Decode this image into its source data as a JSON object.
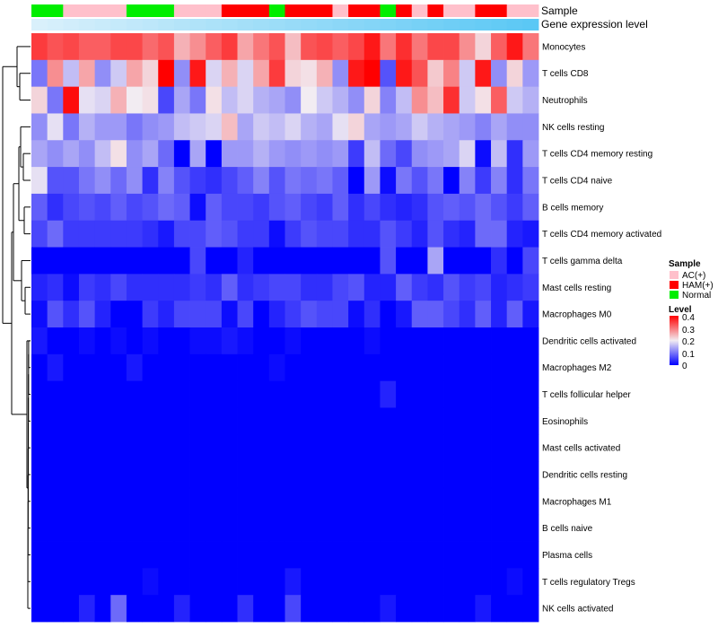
{
  "chart_data": {
    "type": "heatmap",
    "title": "",
    "columns": 32,
    "annotation_tracks": [
      "Sample",
      "Gene expression level"
    ],
    "sample_groups": [
      "Normal",
      "Normal",
      "AC(+)",
      "AC(+)",
      "AC(+)",
      "AC(+)",
      "Normal",
      "Normal",
      "Normal",
      "AC(+)",
      "AC(+)",
      "AC(+)",
      "HAM(+)",
      "HAM(+)",
      "HAM(+)",
      "Normal",
      "HAM(+)",
      "HAM(+)",
      "HAM(+)",
      "AC(+)",
      "HAM(+)",
      "HAM(+)",
      "Normal",
      "HAM(+)",
      "AC(+)",
      "HAM(+)",
      "AC(+)",
      "AC(+)",
      "HAM(+)",
      "HAM(+)",
      "AC(+)",
      "AC(+)"
    ],
    "rows": [
      {
        "label": "Monocytes",
        "values": [
          0.35,
          0.33,
          0.34,
          0.32,
          0.32,
          0.34,
          0.34,
          0.31,
          0.33,
          0.25,
          0.28,
          0.32,
          0.35,
          0.26,
          0.3,
          0.33,
          0.24,
          0.33,
          0.34,
          0.32,
          0.34,
          0.38,
          0.3,
          0.36,
          0.3,
          0.34,
          0.34,
          0.28,
          0.22,
          0.32,
          0.38,
          0.3
        ]
      },
      {
        "label": "T cells CD8",
        "values": [
          0.1,
          0.28,
          0.16,
          0.26,
          0.12,
          0.17,
          0.26,
          0.22,
          0.4,
          0.12,
          0.38,
          0.18,
          0.25,
          0.18,
          0.26,
          0.35,
          0.22,
          0.21,
          0.25,
          0.12,
          0.38,
          0.4,
          0.07,
          0.38,
          0.33,
          0.23,
          0.29,
          0.17,
          0.38,
          0.12,
          0.22,
          0.13
        ]
      },
      {
        "label": "Neutrophils",
        "values": [
          0.22,
          0.1,
          0.39,
          0.19,
          0.18,
          0.25,
          0.2,
          0.21,
          0.06,
          0.14,
          0.1,
          0.21,
          0.16,
          0.18,
          0.15,
          0.14,
          0.12,
          0.2,
          0.17,
          0.15,
          0.12,
          0.22,
          0.11,
          0.16,
          0.28,
          0.24,
          0.36,
          0.17,
          0.21,
          0.32,
          0.17,
          0.15
        ]
      },
      {
        "label": "NK cells resting",
        "values": [
          0.12,
          0.19,
          0.1,
          0.15,
          0.13,
          0.13,
          0.1,
          0.12,
          0.13,
          0.16,
          0.17,
          0.18,
          0.24,
          0.14,
          0.17,
          0.16,
          0.18,
          0.15,
          0.14,
          0.19,
          0.22,
          0.14,
          0.13,
          0.14,
          0.17,
          0.15,
          0.14,
          0.13,
          0.11,
          0.14,
          0.12,
          0.12
        ]
      },
      {
        "label": "T cells CD4 memory resting",
        "values": [
          0.14,
          0.12,
          0.14,
          0.12,
          0.16,
          0.21,
          0.12,
          0.14,
          0.09,
          0.0,
          0.14,
          0.0,
          0.13,
          0.13,
          0.15,
          0.13,
          0.12,
          0.13,
          0.12,
          0.13,
          0.05,
          0.16,
          0.09,
          0.06,
          0.12,
          0.13,
          0.14,
          0.18,
          0.01,
          0.16,
          0.04,
          0.13
        ]
      },
      {
        "label": "T cells CD4 naive",
        "values": [
          0.19,
          0.07,
          0.07,
          0.1,
          0.12,
          0.09,
          0.12,
          0.04,
          0.11,
          0.07,
          0.05,
          0.04,
          0.06,
          0.08,
          0.11,
          0.07,
          0.1,
          0.09,
          0.1,
          0.08,
          0.0,
          0.13,
          0.01,
          0.1,
          0.07,
          0.1,
          0.0,
          0.11,
          0.05,
          0.11,
          0.04,
          0.1
        ]
      },
      {
        "label": "B cells memory",
        "values": [
          0.08,
          0.04,
          0.06,
          0.07,
          0.06,
          0.08,
          0.06,
          0.07,
          0.09,
          0.08,
          0.01,
          0.08,
          0.06,
          0.06,
          0.05,
          0.07,
          0.08,
          0.06,
          0.05,
          0.08,
          0.04,
          0.06,
          0.04,
          0.03,
          0.04,
          0.07,
          0.08,
          0.07,
          0.09,
          0.07,
          0.05,
          0.08
        ]
      },
      {
        "label": "T cells CD4 memory activated",
        "values": [
          0.06,
          0.09,
          0.05,
          0.05,
          0.05,
          0.05,
          0.05,
          0.04,
          0.02,
          0.06,
          0.06,
          0.08,
          0.07,
          0.05,
          0.05,
          0.01,
          0.05,
          0.07,
          0.06,
          0.06,
          0.04,
          0.04,
          0.07,
          0.05,
          0.03,
          0.07,
          0.04,
          0.03,
          0.09,
          0.09,
          0.03,
          0.02
        ]
      },
      {
        "label": "T cells gamma delta",
        "values": [
          0.0,
          0.0,
          0.0,
          0.0,
          0.0,
          0.0,
          0.0,
          0.0,
          0.0,
          0.0,
          0.06,
          0.0,
          0.0,
          0.03,
          0.0,
          0.0,
          0.0,
          0.0,
          0.0,
          0.0,
          0.0,
          0.0,
          0.07,
          0.0,
          0.0,
          0.14,
          0.0,
          0.0,
          0.0,
          0.04,
          0.0,
          0.06
        ]
      },
      {
        "label": "Mast cells resting",
        "values": [
          0.03,
          0.04,
          0.01,
          0.05,
          0.04,
          0.06,
          0.04,
          0.04,
          0.04,
          0.04,
          0.05,
          0.04,
          0.08,
          0.04,
          0.05,
          0.06,
          0.06,
          0.04,
          0.04,
          0.06,
          0.07,
          0.03,
          0.03,
          0.08,
          0.05,
          0.04,
          0.07,
          0.05,
          0.06,
          0.03,
          0.04,
          0.05
        ]
      },
      {
        "label": "Macrophages M0",
        "values": [
          0.01,
          0.07,
          0.04,
          0.07,
          0.03,
          0.0,
          0.0,
          0.05,
          0.03,
          0.06,
          0.06,
          0.06,
          0.01,
          0.06,
          0.0,
          0.03,
          0.05,
          0.07,
          0.06,
          0.06,
          0.01,
          0.04,
          0.0,
          0.02,
          0.08,
          0.08,
          0.06,
          0.04,
          0.08,
          0.03,
          0.08,
          0.02
        ]
      },
      {
        "label": "Dendritic cells activated",
        "values": [
          0.02,
          0.0,
          0.0,
          0.01,
          0.0,
          0.01,
          0.0,
          0.01,
          0.0,
          0.0,
          0.01,
          0.01,
          0.02,
          0.01,
          0.0,
          0.0,
          0.01,
          0.0,
          0.0,
          0.0,
          0.0,
          0.01,
          0.0,
          0.0,
          0.0,
          0.0,
          0.0,
          0.0,
          0.0,
          0.0,
          0.0,
          0.0
        ]
      },
      {
        "label": "Macrophages M2",
        "values": [
          0.0,
          0.02,
          0.0,
          0.0,
          0.0,
          0.0,
          0.02,
          0.0,
          0.0,
          0.0,
          0.0,
          0.0,
          0.0,
          0.0,
          0.0,
          0.01,
          0.0,
          0.0,
          0.0,
          0.0,
          0.0,
          0.0,
          0.0,
          0.0,
          0.0,
          0.0,
          0.0,
          0.0,
          0.0,
          0.0,
          0.0,
          0.0
        ]
      },
      {
        "label": "T cells follicular helper",
        "values": [
          0.0,
          0.0,
          0.0,
          0.0,
          0.0,
          0.0,
          0.0,
          0.0,
          0.0,
          0.0,
          0.0,
          0.0,
          0.0,
          0.0,
          0.0,
          0.0,
          0.0,
          0.0,
          0.0,
          0.0,
          0.0,
          0.0,
          0.03,
          0.0,
          0.0,
          0.0,
          0.0,
          0.0,
          0.0,
          0.0,
          0.0,
          0.0
        ]
      },
      {
        "label": "Eosinophils",
        "values": [
          0.0,
          0.0,
          0.0,
          0.0,
          0.0,
          0.0,
          0.0,
          0.0,
          0.0,
          0.0,
          0.0,
          0.0,
          0.0,
          0.0,
          0.0,
          0.0,
          0.0,
          0.0,
          0.0,
          0.0,
          0.0,
          0.0,
          0.0,
          0.0,
          0.0,
          0.0,
          0.0,
          0.0,
          0.0,
          0.0,
          0.0,
          0.0
        ]
      },
      {
        "label": "Mast cells activated",
        "values": [
          0.0,
          0.0,
          0.0,
          0.0,
          0.0,
          0.0,
          0.0,
          0.0,
          0.0,
          0.0,
          0.0,
          0.0,
          0.0,
          0.0,
          0.0,
          0.0,
          0.0,
          0.0,
          0.0,
          0.0,
          0.0,
          0.0,
          0.0,
          0.0,
          0.0,
          0.0,
          0.0,
          0.0,
          0.0,
          0.0,
          0.0,
          0.0
        ]
      },
      {
        "label": "Dendritic cells resting",
        "values": [
          0.0,
          0.0,
          0.0,
          0.0,
          0.0,
          0.0,
          0.0,
          0.0,
          0.0,
          0.0,
          0.0,
          0.0,
          0.0,
          0.0,
          0.0,
          0.0,
          0.0,
          0.0,
          0.0,
          0.0,
          0.0,
          0.0,
          0.0,
          0.0,
          0.0,
          0.0,
          0.0,
          0.0,
          0.0,
          0.0,
          0.0,
          0.0
        ]
      },
      {
        "label": "Macrophages M1",
        "values": [
          0.0,
          0.0,
          0.0,
          0.0,
          0.0,
          0.0,
          0.0,
          0.0,
          0.0,
          0.0,
          0.0,
          0.0,
          0.0,
          0.0,
          0.0,
          0.0,
          0.0,
          0.0,
          0.0,
          0.0,
          0.0,
          0.0,
          0.0,
          0.0,
          0.0,
          0.0,
          0.0,
          0.0,
          0.0,
          0.0,
          0.0,
          0.0
        ]
      },
      {
        "label": "B cells naive",
        "values": [
          0.0,
          0.0,
          0.0,
          0.0,
          0.0,
          0.0,
          0.0,
          0.0,
          0.0,
          0.0,
          0.0,
          0.0,
          0.0,
          0.0,
          0.0,
          0.0,
          0.0,
          0.0,
          0.0,
          0.0,
          0.0,
          0.0,
          0.0,
          0.0,
          0.0,
          0.0,
          0.0,
          0.0,
          0.0,
          0.0,
          0.0,
          0.0
        ]
      },
      {
        "label": "Plasma cells",
        "values": [
          0.0,
          0.0,
          0.0,
          0.0,
          0.0,
          0.0,
          0.0,
          0.0,
          0.0,
          0.0,
          0.0,
          0.0,
          0.0,
          0.0,
          0.0,
          0.0,
          0.0,
          0.0,
          0.0,
          0.0,
          0.0,
          0.0,
          0.0,
          0.0,
          0.0,
          0.0,
          0.0,
          0.0,
          0.0,
          0.0,
          0.0,
          0.0
        ]
      },
      {
        "label": "T cells regulatory  Tregs",
        "values": [
          0.0,
          0.0,
          0.0,
          0.0,
          0.0,
          0.0,
          0.0,
          0.01,
          0.0,
          0.0,
          0.0,
          0.0,
          0.0,
          0.0,
          0.0,
          0.0,
          0.02,
          0.0,
          0.0,
          0.0,
          0.0,
          0.0,
          0.0,
          0.0,
          0.0,
          0.0,
          0.0,
          0.0,
          0.0,
          0.0,
          0.01,
          0.0
        ]
      },
      {
        "label": "NK cells activated",
        "values": [
          0.0,
          0.0,
          0.0,
          0.03,
          0.0,
          0.09,
          0.0,
          0.0,
          0.0,
          0.03,
          0.0,
          0.0,
          0.0,
          0.04,
          0.0,
          0.0,
          0.06,
          0.0,
          0.0,
          0.0,
          0.0,
          0.0,
          0.02,
          0.0,
          0.0,
          0.0,
          0.0,
          0.0,
          0.02,
          0.0,
          0.0,
          0.0
        ]
      }
    ],
    "legend": {
      "sample": {
        "title": "Sample",
        "entries": [
          {
            "label": "AC(+)",
            "color": "#ffc0cb"
          },
          {
            "label": "HAM(+)",
            "color": "#ff0000"
          },
          {
            "label": "Normal",
            "color": "#00ee00"
          }
        ]
      },
      "level": {
        "title": "Level",
        "ticks": [
          "0.4",
          "0.3",
          "0.2",
          "0.1",
          "0"
        ],
        "range": [
          0,
          0.4
        ]
      }
    },
    "colors": {
      "low": "#0000ff",
      "mid": "#f2ecf2",
      "high": "#ff0000",
      "expression_bar": "#5bc8f5",
      "expression_bar_light": "#d9f0fb",
      "dendrogram": "#000000"
    }
  }
}
